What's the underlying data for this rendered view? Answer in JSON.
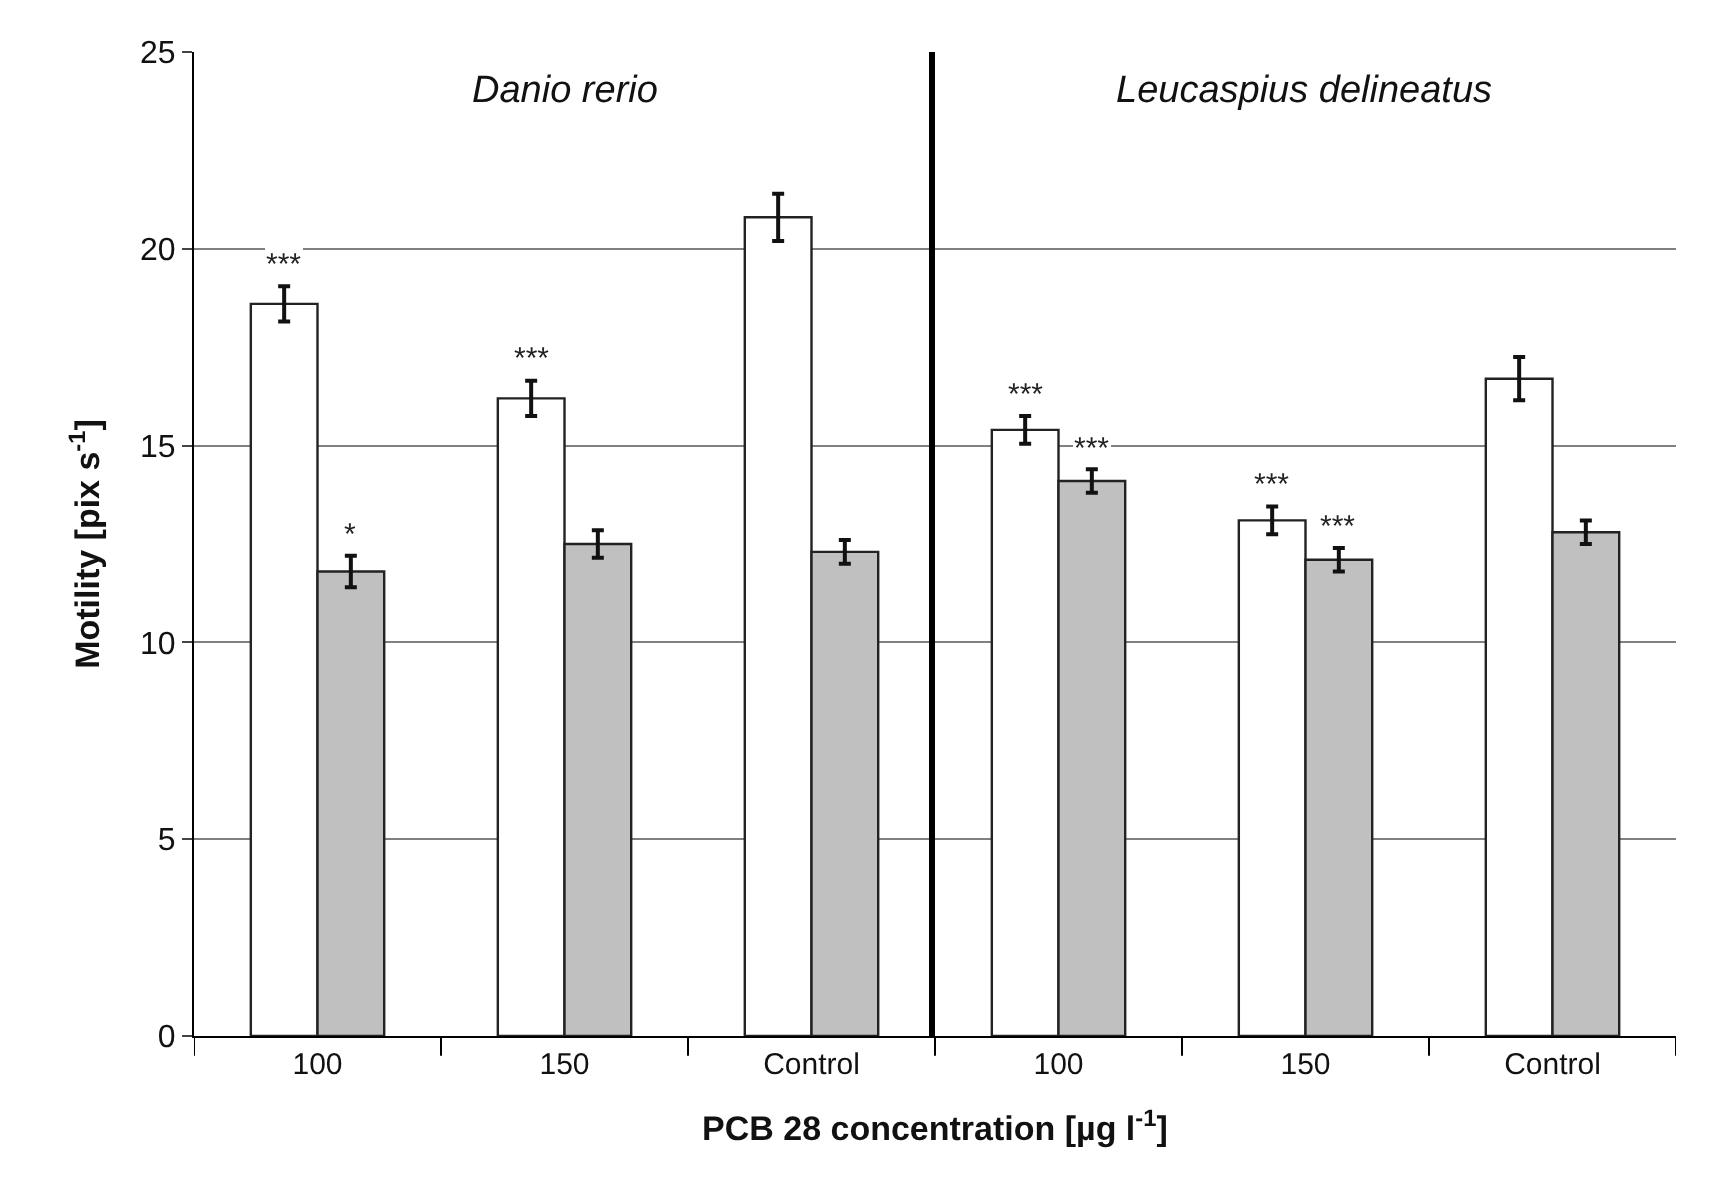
{
  "chart_data": [
    {
      "type": "bar",
      "categories": [
        "100",
        "150",
        "Control"
      ],
      "series": [
        {
          "color": "#ffffff",
          "values": [
            18.6,
            16.2,
            20.8
          ],
          "errors": [
            0.45,
            0.45,
            0.6
          ],
          "value_labels": [
            "***",
            "***",
            null
          ]
        },
        {
          "color": "#c0c0c0",
          "values": [
            11.8,
            12.5,
            12.3
          ],
          "errors": [
            0.4,
            0.35,
            0.3
          ],
          "value_labels": [
            "*",
            null,
            null
          ]
        }
      ],
      "xlabel": "PCB 28 concentration [µg l$^{-1}$]",
      "ylabel": "Motility [pix s$^{-1}$]",
      "ylim": [
        0,
        25
      ],
      "yticks": [
        0,
        5,
        10,
        15,
        20,
        25
      ],
      "grid": "y",
      "annotations": [
        "Danio rerio"
      ]
    },
    {
      "type": "bar",
      "categories": [
        "100",
        "150",
        "Control"
      ],
      "series": [
        {
          "color": "#ffffff",
          "values": [
            15.4,
            13.1,
            16.7
          ],
          "errors": [
            0.35,
            0.35,
            0.55
          ],
          "value_labels": [
            "***",
            "***",
            null
          ]
        },
        {
          "color": "#c0c0c0",
          "values": [
            14.1,
            12.1,
            12.8
          ],
          "errors": [
            0.3,
            0.3,
            0.3
          ],
          "value_labels": [
            "***",
            "***",
            null
          ]
        }
      ],
      "ylim": [
        0,
        25
      ],
      "yticks": [
        0,
        5,
        10,
        15,
        20,
        25
      ],
      "grid": "y",
      "tick_labels": "x",
      "annotations": [
        "Leucaspius delineatus"
      ]
    }
  ]
}
